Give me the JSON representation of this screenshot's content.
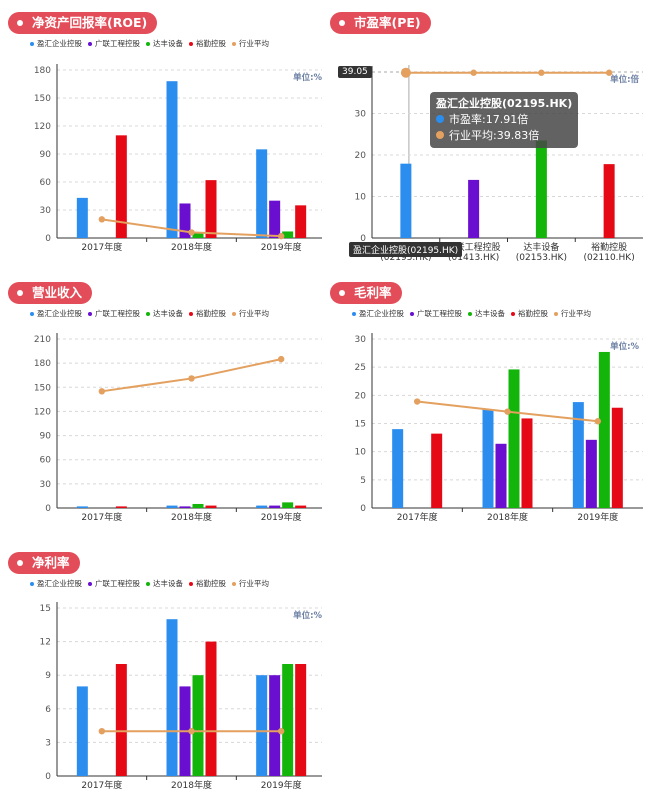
{
  "colors": {
    "pill": "#e34d59",
    "series": [
      "#2b8eef",
      "#6a0fcf",
      "#13b50a",
      "#e50916",
      "#e3a05f"
    ]
  },
  "legend": [
    "盈汇企业控股",
    "广联工程控股",
    "达丰设备",
    "裕勤控股",
    "行业平均"
  ],
  "panels": {
    "roe": {
      "title": "净资产回报率(ROE)",
      "unit": "单位:%"
    },
    "pe": {
      "title": "市盈率(PE)",
      "unit": "单位:倍"
    },
    "rev": {
      "title": "营业收入"
    },
    "gm": {
      "title": "毛利率",
      "unit": "单位:%"
    },
    "np": {
      "title": "净利率",
      "unit": "单位:%"
    }
  },
  "pe_tooltip": {
    "heading": "盈汇企业控股(02195.HK)",
    "line1": "市盈率:17.91倍",
    "line2": "行业平均:39.83倍",
    "axis_value": "39.05",
    "axis_category": "盈汇企业控股(02195.HK)"
  },
  "chart_data": [
    {
      "type": "bar",
      "id": "roe",
      "categories": [
        "2017年度",
        "2018年度",
        "2019年度"
      ],
      "ylim": [
        0,
        180
      ],
      "yticks": [
        0,
        30,
        60,
        90,
        120,
        150,
        180
      ],
      "series": [
        {
          "name": "盈汇企业控股",
          "values": [
            43,
            168,
            95
          ]
        },
        {
          "name": "广联工程控股",
          "values": [
            null,
            37,
            40
          ]
        },
        {
          "name": "达丰设备",
          "values": [
            null,
            6,
            7
          ]
        },
        {
          "name": "裕勤控股",
          "values": [
            110,
            62,
            35
          ]
        }
      ],
      "line": {
        "name": "行业平均",
        "values": [
          20,
          6,
          2
        ]
      }
    },
    {
      "type": "bar",
      "id": "pe",
      "categories": [
        "盈汇企业控股\n(02195.HK)",
        "广联工程控股\n(01413.HK)",
        "达丰设备\n(02153.HK)",
        "裕勤控股\n(02110.HK)"
      ],
      "ylim": [
        0,
        40
      ],
      "yticks": [
        0,
        10,
        20,
        30
      ],
      "values": [
        17.91,
        14,
        23.5,
        17.8
      ],
      "line": {
        "name": "行业平均",
        "values": [
          39.83,
          39.83,
          39.83,
          39.83
        ]
      }
    },
    {
      "type": "bar",
      "id": "rev",
      "categories": [
        "2017年度",
        "2018年度",
        "2019年度"
      ],
      "ylim": [
        0,
        210
      ],
      "yticks": [
        0,
        30,
        60,
        90,
        120,
        150,
        180,
        210
      ],
      "series": [
        {
          "name": "盈汇企业控股",
          "values": [
            2,
            3,
            3
          ]
        },
        {
          "name": "广联工程控股",
          "values": [
            null,
            2,
            3
          ]
        },
        {
          "name": "达丰设备",
          "values": [
            null,
            5,
            7
          ]
        },
        {
          "name": "裕勤控股",
          "values": [
            2,
            3,
            3
          ]
        }
      ],
      "line": {
        "name": "行业平均",
        "values": [
          145,
          161,
          185
        ]
      }
    },
    {
      "type": "bar",
      "id": "gm",
      "categories": [
        "2017年度",
        "2018年度",
        "2019年度"
      ],
      "ylim": [
        0,
        30
      ],
      "yticks": [
        0,
        5,
        10,
        15,
        20,
        25,
        30
      ],
      "series": [
        {
          "name": "盈汇企业控股",
          "values": [
            14,
            17.5,
            18.8
          ]
        },
        {
          "name": "广联工程控股",
          "values": [
            null,
            11.4,
            12.1
          ]
        },
        {
          "name": "达丰设备",
          "values": [
            null,
            24.6,
            27.7
          ]
        },
        {
          "name": "裕勤控股",
          "values": [
            13.2,
            15.9,
            17.8
          ]
        }
      ],
      "line": {
        "name": "行业平均",
        "values": [
          18.9,
          17.1,
          15.4
        ]
      }
    },
    {
      "type": "bar",
      "id": "np",
      "categories": [
        "2017年度",
        "2018年度",
        "2019年度"
      ],
      "ylim": [
        0,
        15
      ],
      "yticks": [
        0,
        3,
        6,
        9,
        12,
        15
      ],
      "series": [
        {
          "name": "盈汇企业控股",
          "values": [
            8,
            14,
            9
          ]
        },
        {
          "name": "广联工程控股",
          "values": [
            null,
            8,
            9
          ]
        },
        {
          "name": "达丰设备",
          "values": [
            null,
            9,
            10
          ]
        },
        {
          "name": "裕勤控股",
          "values": [
            10,
            12,
            10
          ]
        }
      ],
      "line": {
        "name": "行业平均",
        "values": [
          4,
          4,
          4
        ]
      }
    }
  ]
}
